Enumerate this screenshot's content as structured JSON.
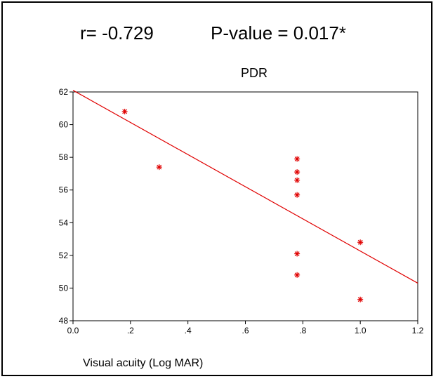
{
  "stats": {
    "r": "r= -0.729",
    "p": "P-value = 0.017*"
  },
  "chart_data": {
    "type": "scatter",
    "title": "PDR",
    "xlabel": "Visual acuity (Log MAR)",
    "ylabel": "",
    "xlim": [
      0.0,
      1.2
    ],
    "ylim": [
      48,
      62
    ],
    "x_ticks": [
      0.0,
      0.2,
      0.4,
      0.6,
      0.8,
      1.0,
      1.2
    ],
    "x_tick_labels": [
      "0.0",
      ".2",
      ".4",
      ".6",
      ".8",
      "1.0",
      "1.2"
    ],
    "y_ticks": [
      48,
      50,
      52,
      54,
      56,
      58,
      60,
      62
    ],
    "y_tick_labels": [
      "48",
      "50",
      "52",
      "54",
      "56",
      "58",
      "60",
      "62"
    ],
    "grid": false,
    "marker_color": "#e00000",
    "marker": "asterisk",
    "points": [
      {
        "x": 0.18,
        "y": 60.8
      },
      {
        "x": 0.3,
        "y": 57.4
      },
      {
        "x": 0.78,
        "y": 57.9
      },
      {
        "x": 0.78,
        "y": 57.1
      },
      {
        "x": 0.78,
        "y": 56.6
      },
      {
        "x": 0.78,
        "y": 55.7
      },
      {
        "x": 0.78,
        "y": 52.1
      },
      {
        "x": 0.78,
        "y": 50.8
      },
      {
        "x": 1.0,
        "y": 52.8
      },
      {
        "x": 1.0,
        "y": 49.3
      }
    ],
    "fit_line": {
      "x": [
        0.0,
        1.2
      ],
      "y": [
        62.1,
        50.3
      ],
      "color": "#e00000"
    }
  }
}
